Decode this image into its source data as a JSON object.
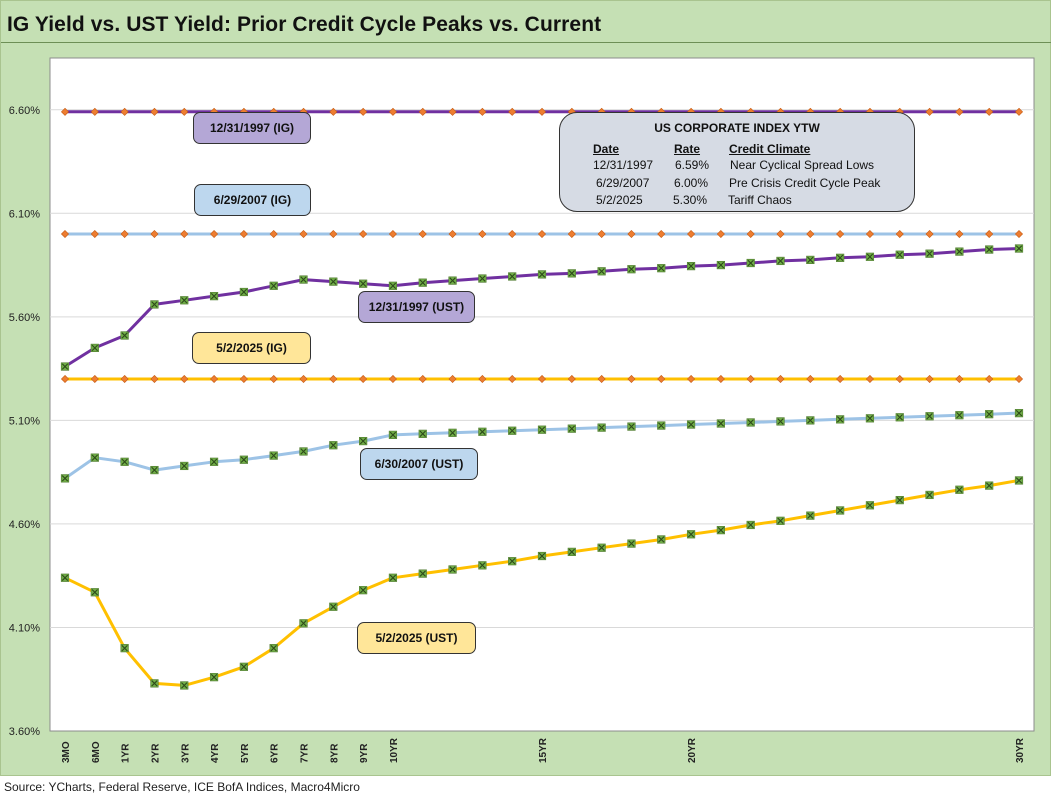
{
  "title": "IG Yield vs. UST Yield: Prior Credit Cycle Peaks vs. Current",
  "source": "Source: YCharts, Federal Reserve, ICE BofA Indices, Macro4Micro",
  "labels": {
    "ig_1997": "12/31/1997 (IG)",
    "ig_2007": "6/29/2007 (IG)",
    "ust_1997": "12/31/1997 (UST)",
    "ig_2025": "5/2/2025 (IG)",
    "ust_2007": "6/30/2007 (UST)",
    "ust_2025": "5/2/2025 (UST)"
  },
  "info_box": {
    "title": "US CORPORATE  INDEX YTW",
    "headers": [
      "Date",
      "Rate",
      "Credit Climate"
    ],
    "rows": [
      [
        "12/31/1997",
        "6.59%",
        "Near Cyclical Spread Lows"
      ],
      [
        "6/29/2007",
        "6.00%",
        "Pre Crisis Credit Cycle Peak"
      ],
      [
        "5/2/2025",
        "5.30%",
        "Tariff Chaos"
      ]
    ]
  },
  "colors": {
    "purple": "#7030a0",
    "light_blue": "#9dc3e6",
    "gold": "#ffc000",
    "ig_marker": "#ed7d31",
    "ust_marker": "#70ad47",
    "purple_label_bg": "#b4a7d6",
    "blue_label_bg": "#bdd7ee",
    "gold_label_bg": "#ffe699",
    "info_bg": "#d6dbe4",
    "frame_bg": "#c5e0b4"
  },
  "chart_data": {
    "type": "line",
    "title": "IG Yield vs. UST Yield: Prior Credit Cycle Peaks vs. Current",
    "xlabel": "",
    "ylabel": "",
    "ylim": [
      3.6,
      6.85
    ],
    "yticks": [
      "3.60%",
      "4.10%",
      "4.60%",
      "5.10%",
      "5.60%",
      "6.10%",
      "6.60%"
    ],
    "ytick_values": [
      3.6,
      4.1,
      4.6,
      5.1,
      5.6,
      6.1,
      6.6
    ],
    "x_count": 33,
    "x_tick_labels": [
      {
        "i": 0,
        "label": "3MO"
      },
      {
        "i": 1,
        "label": "6MO"
      },
      {
        "i": 2,
        "label": "1YR"
      },
      {
        "i": 3,
        "label": "2YR"
      },
      {
        "i": 4,
        "label": "3YR"
      },
      {
        "i": 5,
        "label": "4YR"
      },
      {
        "i": 6,
        "label": "5YR"
      },
      {
        "i": 7,
        "label": "6YR"
      },
      {
        "i": 8,
        "label": "7YR"
      },
      {
        "i": 9,
        "label": "8YR"
      },
      {
        "i": 10,
        "label": "9YR"
      },
      {
        "i": 11,
        "label": "10YR"
      },
      {
        "i": 16,
        "label": "15YR"
      },
      {
        "i": 21,
        "label": "20YR"
      },
      {
        "i": 32,
        "label": "30YR"
      }
    ],
    "grid": true,
    "series": [
      {
        "key": "ig_1997",
        "color": "#7030a0",
        "marker": "diamond",
        "values": [
          6.59,
          6.59,
          6.59,
          6.59,
          6.59,
          6.59,
          6.59,
          6.59,
          6.59,
          6.59,
          6.59,
          6.59,
          6.59,
          6.59,
          6.59,
          6.59,
          6.59,
          6.59,
          6.59,
          6.59,
          6.59,
          6.59,
          6.59,
          6.59,
          6.59,
          6.59,
          6.59,
          6.59,
          6.59,
          6.59,
          6.59,
          6.59,
          6.59
        ]
      },
      {
        "key": "ig_2007",
        "color": "#9dc3e6",
        "marker": "diamond",
        "values": [
          6.0,
          6.0,
          6.0,
          6.0,
          6.0,
          6.0,
          6.0,
          6.0,
          6.0,
          6.0,
          6.0,
          6.0,
          6.0,
          6.0,
          6.0,
          6.0,
          6.0,
          6.0,
          6.0,
          6.0,
          6.0,
          6.0,
          6.0,
          6.0,
          6.0,
          6.0,
          6.0,
          6.0,
          6.0,
          6.0,
          6.0,
          6.0,
          6.0
        ]
      },
      {
        "key": "ig_2025",
        "color": "#ffc000",
        "marker": "diamond",
        "values": [
          5.3,
          5.3,
          5.3,
          5.3,
          5.3,
          5.3,
          5.3,
          5.3,
          5.3,
          5.3,
          5.3,
          5.3,
          5.3,
          5.3,
          5.3,
          5.3,
          5.3,
          5.3,
          5.3,
          5.3,
          5.3,
          5.3,
          5.3,
          5.3,
          5.3,
          5.3,
          5.3,
          5.3,
          5.3,
          5.3,
          5.3,
          5.3,
          5.3
        ]
      },
      {
        "key": "ust_1997",
        "color": "#7030a0",
        "marker": "x",
        "values": [
          5.36,
          5.45,
          5.51,
          5.66,
          5.68,
          5.7,
          5.72,
          5.75,
          5.78,
          5.77,
          5.76,
          5.75,
          5.765,
          5.775,
          5.785,
          5.795,
          5.805,
          5.81,
          5.82,
          5.83,
          5.835,
          5.845,
          5.85,
          5.86,
          5.87,
          5.875,
          5.885,
          5.89,
          5.9,
          5.905,
          5.915,
          5.925,
          5.93
        ]
      },
      {
        "key": "ust_2007",
        "color": "#9dc3e6",
        "marker": "x",
        "values": [
          4.82,
          4.92,
          4.9,
          4.86,
          4.88,
          4.9,
          4.91,
          4.93,
          4.95,
          4.98,
          5.0,
          5.03,
          5.035,
          5.04,
          5.045,
          5.05,
          5.055,
          5.06,
          5.065,
          5.07,
          5.075,
          5.08,
          5.085,
          5.09,
          5.095,
          5.1,
          5.105,
          5.11,
          5.115,
          5.12,
          5.125,
          5.13,
          5.135
        ]
      },
      {
        "key": "ust_2025",
        "color": "#ffc000",
        "marker": "x",
        "values": [
          4.34,
          4.27,
          4.0,
          3.83,
          3.82,
          3.86,
          3.91,
          4.0,
          4.12,
          4.2,
          4.28,
          4.34,
          4.36,
          4.38,
          4.4,
          4.42,
          4.445,
          4.465,
          4.485,
          4.505,
          4.525,
          4.55,
          4.57,
          4.595,
          4.615,
          4.64,
          4.665,
          4.69,
          4.715,
          4.74,
          4.765,
          4.785,
          4.81
        ]
      }
    ]
  }
}
